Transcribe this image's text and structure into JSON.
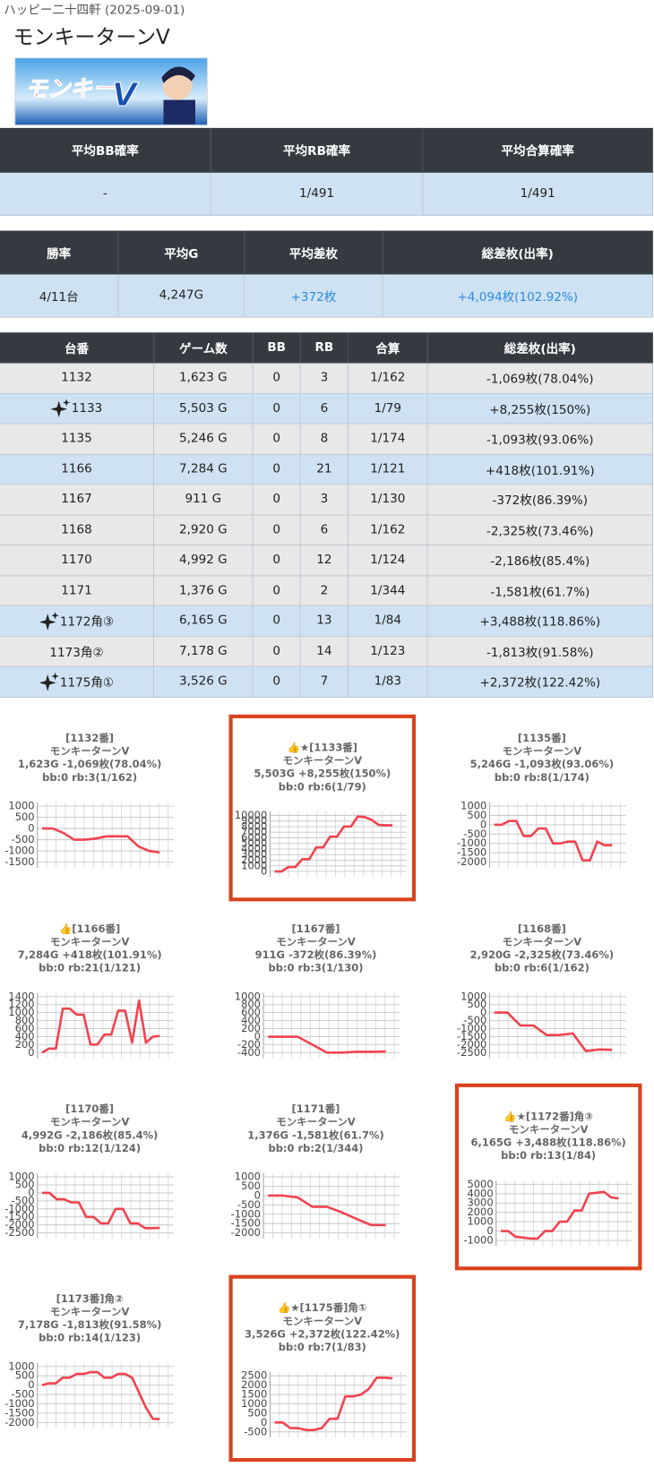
{
  "header": {
    "subtitle": "ハッピー二十四軒 (2025-09-01)",
    "title": "モンキーターンV"
  },
  "summary1": {
    "headers": [
      "平均BB確率",
      "平均RB確率",
      "平均合算確率"
    ],
    "row": [
      "-",
      "1/491",
      "1/491"
    ]
  },
  "summary2": {
    "headers": [
      "勝率",
      "平均G",
      "平均差枚",
      "総差枚(出率)"
    ],
    "row": [
      "4/11台",
      "4,247G",
      "+372枚",
      "+4,094枚(102.92%)"
    ],
    "accent_cells": [
      2,
      3
    ]
  },
  "machines": {
    "headers": [
      "台番",
      "ゲーム数",
      "BB",
      "RB",
      "合算",
      "総差枚(出率)"
    ],
    "rows": [
      {
        "cells": [
          "1132",
          "1,623 G",
          "0",
          "3",
          "1/162",
          "-1,069枚(78.04%)"
        ],
        "highlight": false,
        "icon": false
      },
      {
        "cells": [
          "1133",
          "5,503 G",
          "0",
          "6",
          "1/79",
          "+8,255枚(150%)"
        ],
        "highlight": true,
        "icon": true
      },
      {
        "cells": [
          "1135",
          "5,246 G",
          "0",
          "8",
          "1/174",
          "-1,093枚(93.06%)"
        ],
        "highlight": false,
        "icon": false
      },
      {
        "cells": [
          "1166",
          "7,284 G",
          "0",
          "21",
          "1/121",
          "+418枚(101.91%)"
        ],
        "highlight": true,
        "icon": false
      },
      {
        "cells": [
          "1167",
          "911 G",
          "0",
          "3",
          "1/130",
          "-372枚(86.39%)"
        ],
        "highlight": false,
        "icon": false
      },
      {
        "cells": [
          "1168",
          "2,920 G",
          "0",
          "6",
          "1/162",
          "-2,325枚(73.46%)"
        ],
        "highlight": false,
        "icon": false
      },
      {
        "cells": [
          "1170",
          "4,992 G",
          "0",
          "12",
          "1/124",
          "-2,186枚(85.4%)"
        ],
        "highlight": false,
        "icon": false
      },
      {
        "cells": [
          "1171",
          "1,376 G",
          "0",
          "2",
          "1/344",
          "-1,581枚(61.7%)"
        ],
        "highlight": false,
        "icon": false
      },
      {
        "cells": [
          "1172角③",
          "6,165 G",
          "0",
          "13",
          "1/84",
          "+3,488枚(118.86%)"
        ],
        "highlight": true,
        "icon": true
      },
      {
        "cells": [
          "1173角②",
          "7,178 G",
          "0",
          "14",
          "1/123",
          "-1,813枚(91.58%)"
        ],
        "highlight": false,
        "icon": false
      },
      {
        "cells": [
          "1175角①",
          "3,526 G",
          "0",
          "7",
          "1/83",
          "+2,372枚(122.42%)"
        ],
        "highlight": true,
        "icon": true
      }
    ]
  },
  "charts": [
    {
      "type": "line",
      "highlight": false,
      "color": "#f0434f",
      "title": [
        "[1132番]",
        "モンキーターンV",
        "1,623G -1,069枚(78.04%)",
        "bb:0 rb:3(1/162)"
      ],
      "ylim": [
        -1500,
        1000
      ],
      "yticks": [
        1000,
        500,
        0,
        -500,
        -1000,
        -1500
      ],
      "values": [
        0,
        0,
        -200,
        -500,
        -500,
        -450,
        -350,
        -350,
        -350,
        -800,
        -1000,
        -1069
      ]
    },
    {
      "type": "line",
      "highlight": true,
      "color": "#f0434f",
      "title": [
        "👍★[1133番]",
        "モンキーターンV",
        "5,503G +8,255枚(150%)",
        "bb:0 rb:6(1/79)"
      ],
      "ylim": [
        0,
        10000
      ],
      "yticks": [
        10000,
        9000,
        8000,
        7000,
        6000,
        5000,
        4000,
        3000,
        2000,
        1000,
        0
      ],
      "values": [
        0,
        0,
        800,
        800,
        2200,
        2200,
        4300,
        4300,
        6200,
        6200,
        8000,
        8000,
        9800,
        9700,
        9200,
        8300,
        8255,
        8255
      ]
    },
    {
      "type": "line",
      "highlight": false,
      "color": "#f0434f",
      "title": [
        "[1135番]",
        "モンキーターンV",
        "5,246G -1,093枚(93.06%)",
        "bb:0 rb:8(1/174)"
      ],
      "ylim": [
        -2000,
        1000
      ],
      "yticks": [
        1000,
        500,
        0,
        -500,
        -1000,
        -1500,
        -2000
      ],
      "values": [
        0,
        0,
        200,
        200,
        -600,
        -600,
        -200,
        -200,
        -1000,
        -1000,
        -900,
        -900,
        -1900,
        -1900,
        -900,
        -1100,
        -1093
      ]
    },
    {
      "type": "line",
      "highlight": false,
      "color": "#f0434f",
      "title": [
        "👍[1166番]",
        "モンキーターンV",
        "7,284G +418枚(101.91%)",
        "bb:0 rb:21(1/121)"
      ],
      "ylim": [
        0,
        1400
      ],
      "yticks": [
        1400,
        1200,
        1000,
        800,
        600,
        400,
        200,
        0
      ],
      "values": [
        0,
        100,
        100,
        1100,
        1100,
        950,
        950,
        200,
        200,
        450,
        450,
        1050,
        1050,
        250,
        1300,
        250,
        400,
        418
      ]
    },
    {
      "type": "line",
      "highlight": false,
      "color": "#f0434f",
      "title": [
        "[1167番]",
        "モンキーターンV",
        "911G -372枚(86.39%)",
        "bb:0 rb:3(1/130)"
      ],
      "ylim": [
        -400,
        1000
      ],
      "yticks": [
        1000,
        800,
        600,
        400,
        200,
        0,
        -200,
        -400
      ],
      "values": [
        0,
        0,
        0,
        -200,
        -400,
        -400,
        -380,
        -380,
        -372
      ]
    },
    {
      "type": "line",
      "highlight": false,
      "color": "#f0434f",
      "title": [
        "[1168番]",
        "モンキーターンV",
        "2,920G -2,325枚(73.46%)",
        "bb:0 rb:6(1/162)"
      ],
      "ylim": [
        -2500,
        1000
      ],
      "yticks": [
        1000,
        500,
        0,
        -500,
        -1000,
        -1500,
        -2000,
        -2500
      ],
      "values": [
        0,
        0,
        -800,
        -800,
        -1400,
        -1400,
        -1300,
        -2400,
        -2300,
        -2325
      ]
    },
    {
      "type": "line",
      "highlight": false,
      "color": "#f0434f",
      "title": [
        "[1170番]",
        "モンキーターンV",
        "4,992G -2,186枚(85.4%)",
        "bb:0 rb:12(1/124)"
      ],
      "ylim": [
        -2500,
        1000
      ],
      "yticks": [
        1000,
        500,
        0,
        -500,
        -1000,
        -1500,
        -2000,
        -2500
      ],
      "values": [
        0,
        0,
        -400,
        -400,
        -600,
        -600,
        -1500,
        -1500,
        -1900,
        -1900,
        -1000,
        -1000,
        -1900,
        -1900,
        -2200,
        -2200,
        -2186
      ]
    },
    {
      "type": "line",
      "highlight": false,
      "color": "#f0434f",
      "title": [
        "[1171番]",
        "モンキーターンV",
        "1,376G -1,581枚(61.7%)",
        "bb:0 rb:2(1/344)"
      ],
      "ylim": [
        -2000,
        1000
      ],
      "yticks": [
        1000,
        500,
        0,
        -500,
        -1000,
        -1500,
        -2000
      ],
      "values": [
        0,
        0,
        -100,
        -600,
        -600,
        -900,
        -1250,
        -1581,
        -1581
      ]
    },
    {
      "type": "line",
      "highlight": true,
      "color": "#f0434f",
      "title": [
        "👍★[1172番]角③",
        "モンキーターンV",
        "6,165G +3,488枚(118.86%)",
        "bb:0 rb:13(1/84)"
      ],
      "ylim": [
        -1000,
        5000
      ],
      "yticks": [
        5000,
        4000,
        3000,
        2000,
        1000,
        0,
        -1000
      ],
      "values": [
        0,
        0,
        -600,
        -700,
        -800,
        -800,
        0,
        0,
        1000,
        1000,
        2200,
        2200,
        4000,
        4100,
        4200,
        3600,
        3488
      ]
    },
    {
      "type": "line",
      "highlight": false,
      "color": "#f0434f",
      "title": [
        "[1173番]角②",
        "モンキーターンV",
        "7,178G -1,813枚(91.58%)",
        "bb:0 rb:14(1/123)"
      ],
      "ylim": [
        -2000,
        1000
      ],
      "yticks": [
        1000,
        500,
        0,
        -500,
        -1000,
        -1500,
        -2000
      ],
      "values": [
        0,
        100,
        100,
        400,
        400,
        600,
        600,
        700,
        700,
        400,
        400,
        600,
        600,
        400,
        -400,
        -1200,
        -1800,
        -1813
      ]
    },
    {
      "type": "line",
      "highlight": true,
      "color": "#f0434f",
      "title": [
        "👍★[1175番]角①",
        "モンキーターンV",
        "3,526G +2,372枚(122.42%)",
        "bb:0 rb:7(1/83)"
      ],
      "ylim": [
        -500,
        2500
      ],
      "yticks": [
        2500,
        2000,
        1500,
        1000,
        500,
        0,
        -500
      ],
      "values": [
        0,
        0,
        -300,
        -300,
        -400,
        -400,
        -300,
        200,
        200,
        1400,
        1400,
        1500,
        1800,
        2400,
        2400,
        2372
      ]
    }
  ]
}
